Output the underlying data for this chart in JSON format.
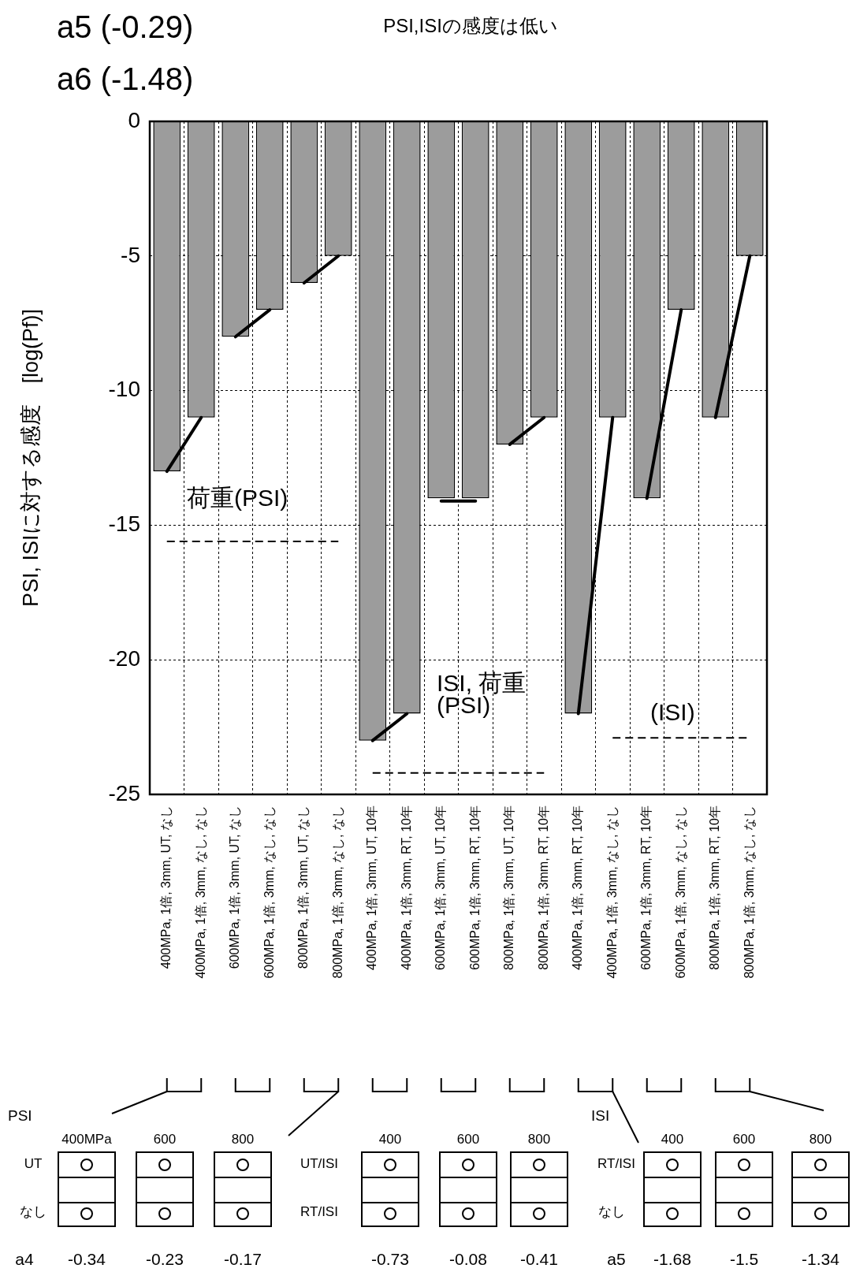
{
  "chart_data": {
    "type": "bar",
    "title": "PSI,ISIの感度は低い",
    "ylabel": "PSI, ISIに対する感度　[log(Pf)]",
    "categories": [
      "400MPa, 1倍, 3mm, UT, なし",
      "400MPa, 1倍, 3mm, なし, なし",
      "600MPa, 1倍, 3mm, UT, なし",
      "600MPa, 1倍, 3mm, なし, なし",
      "800MPa, 1倍, 3mm, UT, なし",
      "800MPa, 1倍, 3mm, なし, なし",
      "400MPa, 1倍, 3mm, UT, 10年",
      "400MPa, 1倍, 3mm, RT, 10年",
      "600MPa, 1倍, 3mm, UT, 10年",
      "600MPa, 1倍, 3mm, RT, 10年",
      "800MPa, 1倍, 3mm, UT, 10年",
      "800MPa, 1倍, 3mm, RT, 10年",
      "400MPa, 1倍, 3mm, RT, 10年",
      "400MPa, 1倍, 3mm, なし, なし",
      "600MPa, 1倍, 3mm, RT, 10年",
      "600MPa, 1倍, 3mm, なし, なし",
      "800MPa, 1倍, 3mm, RT, 10年",
      "800MPa, 1倍, 3mm, なし, なし"
    ],
    "series": [
      {
        "color": "#9c9c9c",
        "values": [
          -13,
          -11,
          -8,
          -7,
          -6,
          -5,
          -23,
          -22,
          -14,
          -14,
          -12,
          -11,
          -22,
          -11,
          -14,
          -7,
          -11,
          -5
        ]
      },
      {
        "type": "line",
        "color": "#000000",
        "values": [
          -13,
          -11,
          null,
          null,
          null,
          null,
          null,
          null,
          null,
          null,
          null,
          null,
          null,
          null,
          null,
          null,
          null,
          null
        ]
      },
      {
        "type": "line",
        "color": "#000000",
        "values": [
          null,
          null,
          -8,
          -7,
          null,
          null,
          null,
          null,
          null,
          null,
          null,
          null,
          null,
          null,
          null,
          null,
          null,
          null
        ]
      },
      {
        "type": "line",
        "color": "#000000",
        "values": [
          null,
          null,
          null,
          null,
          -6,
          -5,
          null,
          null,
          null,
          null,
          null,
          null,
          null,
          null,
          null,
          null,
          null,
          null
        ]
      },
      {
        "type": "line",
        "color": "#000000",
        "values": [
          null,
          null,
          null,
          null,
          null,
          null,
          -23,
          -22,
          null,
          null,
          null,
          null,
          null,
          null,
          null,
          null,
          null,
          null
        ]
      },
      {
        "type": "line",
        "color": "#000000",
        "values": [
          null,
          null,
          null,
          null,
          null,
          null,
          null,
          null,
          -14.1,
          -14.1,
          null,
          null,
          null,
          null,
          null,
          null,
          null,
          null
        ]
      },
      {
        "type": "line",
        "color": "#000000",
        "values": [
          null,
          null,
          null,
          null,
          null,
          null,
          null,
          null,
          null,
          null,
          -12,
          -11,
          null,
          null,
          null,
          null,
          null,
          null
        ]
      },
      {
        "type": "line",
        "color": "#000000",
        "values": [
          null,
          null,
          null,
          null,
          null,
          null,
          null,
          null,
          null,
          null,
          null,
          null,
          -22,
          -11,
          null,
          null,
          null,
          null
        ]
      },
      {
        "type": "line",
        "color": "#000000",
        "values": [
          null,
          null,
          null,
          null,
          null,
          null,
          null,
          null,
          null,
          null,
          null,
          null,
          null,
          null,
          -14,
          -7,
          null,
          null
        ]
      },
      {
        "type": "line",
        "color": "#000000",
        "values": [
          null,
          null,
          null,
          null,
          null,
          null,
          null,
          null,
          null,
          null,
          null,
          null,
          null,
          null,
          null,
          null,
          -11,
          -5
        ]
      },
      {
        "type": "line",
        "color": "#000000",
        "line_style": "dashed",
        "values": [
          -15.6,
          -15.6,
          -15.6,
          -15.6,
          -15.6,
          -15.6,
          null,
          null,
          null,
          null,
          null,
          null,
          null,
          null,
          null,
          null,
          null,
          null
        ]
      },
      {
        "type": "line",
        "color": "#000000",
        "line_style": "dashed",
        "values": [
          null,
          null,
          null,
          null,
          null,
          null,
          -24.2,
          -24.2,
          -24.2,
          -24.2,
          -24.2,
          -24.2,
          null,
          null,
          null,
          null,
          null,
          null
        ]
      },
      {
        "type": "line",
        "color": "#000000",
        "line_style": "dashed",
        "values": [
          null,
          null,
          null,
          null,
          null,
          null,
          null,
          null,
          null,
          null,
          null,
          null,
          null,
          -22.9,
          -22.9,
          -22.9,
          -22.9,
          -22.9
        ]
      }
    ],
    "ylim": [
      -25,
      0
    ],
    "yticks": [
      0,
      -5,
      -10,
      -15,
      -20,
      -25
    ],
    "grid": true,
    "legend": false,
    "marker": "none",
    "annotations": [
      "a5 (-0.29)",
      "a6 (-1.48)",
      "荷重(PSI)",
      "ISI, 荷重\n(PSI)",
      "(ISI)",
      "PSI",
      "400MPa",
      "600",
      "800",
      "UT",
      "なし",
      "a4",
      "-0.34",
      "-0.23",
      "-0.17",
      "400",
      "600",
      "800",
      "UT/ISI",
      "RT/ISI",
      "-0.73",
      "-0.08",
      "-0.41",
      "ISI",
      "400",
      "600",
      "800",
      "RT/ISI",
      "なし",
      "a5",
      "-1.68",
      "-1.5",
      "-1.34"
    ]
  }
}
